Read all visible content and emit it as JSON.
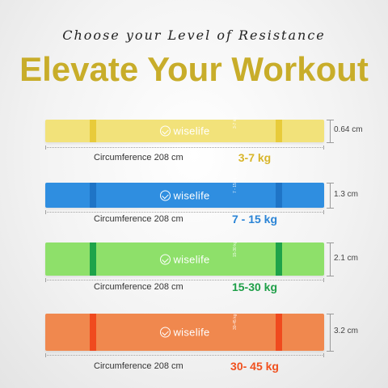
{
  "header": {
    "subtitle": "Choose your Level of Resistance",
    "title": "Elevate Your Workout"
  },
  "brand": "wiselife",
  "bands": [
    {
      "thickness": "0.64 cm",
      "circumference": "Circumference 208 cm",
      "resistance": "3-7 kg",
      "band_label": "3-7 kg",
      "color": "#f2e27a",
      "stripe_color": "#e8cb3a",
      "resistance_color": "#d8b52a"
    },
    {
      "thickness": "1.3 cm",
      "circumference": "Circumference 208 cm",
      "resistance": "7 - 15 kg",
      "band_label": "7 - 15 kg",
      "color": "#2f8ee0",
      "stripe_color": "#1f74c6",
      "resistance_color": "#2a84d6"
    },
    {
      "thickness": "2.1 cm",
      "circumference": "Circumference 208 cm",
      "resistance": "15-30 kg",
      "band_label": "15-30 kg",
      "color": "#8ee06a",
      "stripe_color": "#1ea34a",
      "resistance_color": "#1e9f48"
    },
    {
      "thickness": "3.2 cm",
      "circumference": "Circumference 208 cm",
      "resistance": "30- 45 kg",
      "band_label": "30-45 kg",
      "color": "#f0884e",
      "stripe_color": "#f04a1e",
      "resistance_color": "#f0501e"
    }
  ]
}
